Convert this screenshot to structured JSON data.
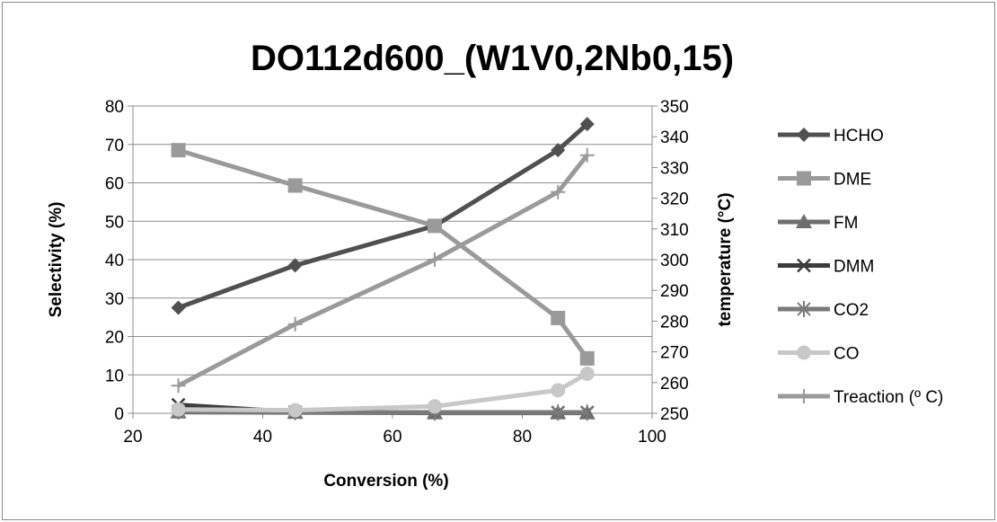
{
  "chart_data": {
    "type": "line",
    "title": "DO112d600_(W1V0,2Nb0,15)",
    "xlabel": "Conversion (%)",
    "ylabel": "Selectivity (%)",
    "y2label": "temperature (°C)",
    "xlim": [
      20,
      100
    ],
    "ylim": [
      0,
      80
    ],
    "y2lim": [
      250,
      350
    ],
    "xticks": [
      20,
      40,
      60,
      80,
      100
    ],
    "yticks": [
      0,
      10,
      20,
      30,
      40,
      50,
      60,
      70,
      80
    ],
    "y2ticks": [
      250,
      260,
      270,
      280,
      290,
      300,
      310,
      320,
      330,
      340,
      350
    ],
    "grid": "horizontal",
    "legend": "right",
    "x": [
      27,
      45,
      66.5,
      85.5,
      90
    ],
    "series": [
      {
        "name": "HCHO",
        "axis": "left",
        "marker": "diamond",
        "color": "#505050",
        "values": [
          27.5,
          38.5,
          48.8,
          68.5,
          75.3
        ]
      },
      {
        "name": "DME",
        "axis": "left",
        "marker": "square",
        "color": "#9a9a9a",
        "values": [
          68.5,
          59.3,
          48.8,
          24.8,
          14.3
        ]
      },
      {
        "name": "FM",
        "axis": "left",
        "marker": "triangle",
        "color": "#6e6e6e",
        "values": [
          0.3,
          0.2,
          0.1,
          0.1,
          0.1
        ]
      },
      {
        "name": "DMM",
        "axis": "left",
        "marker": "x",
        "color": "#3c3c3c",
        "values": [
          2.2,
          0.3,
          0.2,
          0.2,
          0.2
        ]
      },
      {
        "name": "CO2",
        "axis": "left",
        "marker": "star",
        "color": "#7a7a7a",
        "values": [
          0.5,
          0.3,
          0.2,
          0.2,
          0.2
        ]
      },
      {
        "name": "CO",
        "axis": "left",
        "marker": "circle",
        "color": "#c8c8c8",
        "values": [
          1.0,
          0.8,
          1.8,
          6.0,
          10.3
        ]
      },
      {
        "name": "Treaction (º C)",
        "axis": "right",
        "marker": "plus",
        "color": "#9a9a9a",
        "values": [
          259,
          279,
          300,
          322,
          334
        ]
      }
    ]
  }
}
